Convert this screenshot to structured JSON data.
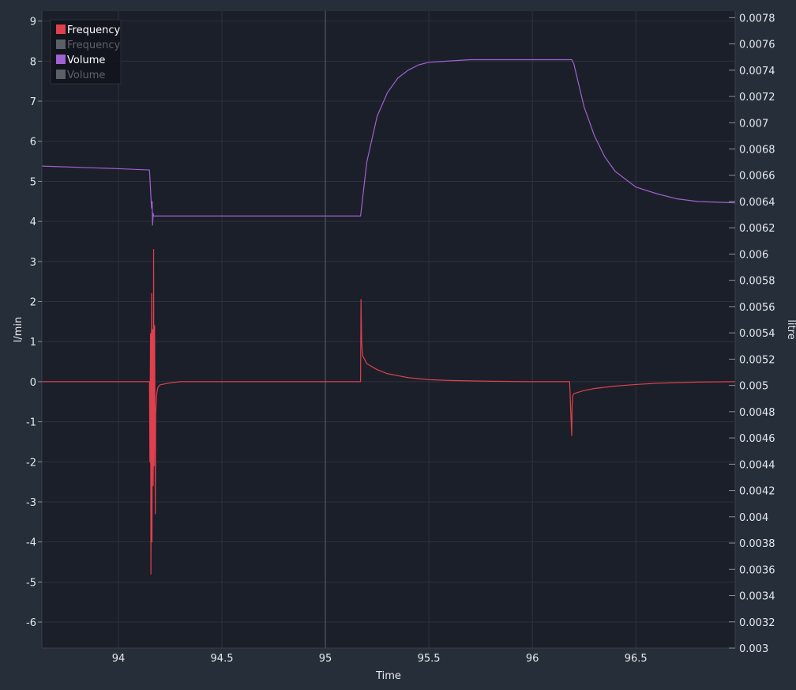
{
  "chart_data": {
    "type": "line",
    "xlabel": "Time",
    "ylabel_left": "l/min",
    "ylabel_right": "litre",
    "xlim": [
      93.63,
      96.98
    ],
    "ylim_left": [
      -6.65,
      9.25
    ],
    "ylim_right": [
      0.003,
      0.00785
    ],
    "x_ticks": [
      94,
      94.5,
      95,
      95.5,
      96,
      96.5
    ],
    "x_tick_labels": [
      "94",
      "94.5",
      "95",
      "95.5",
      "96",
      "96.5"
    ],
    "y_left_ticks": [
      9,
      8,
      7,
      6,
      5,
      4,
      3,
      2,
      1,
      0,
      -1,
      -2,
      -3,
      -4,
      -5,
      -6
    ],
    "y_left_tick_labels": [
      "9",
      "8",
      "7",
      "6",
      "5",
      "4",
      "3",
      "2",
      "1",
      "0",
      "-1",
      "-2",
      "-3",
      "-4",
      "-5",
      "-6"
    ],
    "y_right_ticks": [
      0.0078,
      0.0076,
      0.0074,
      0.0072,
      0.007,
      0.0068,
      0.0066,
      0.0064,
      0.0062,
      0.006,
      0.0058,
      0.0056,
      0.0054,
      0.0052,
      0.005,
      0.0048,
      0.0046,
      0.0044,
      0.0042,
      0.004,
      0.0038,
      0.0036,
      0.0034,
      0.0032,
      0.003
    ],
    "y_right_tick_labels": [
      "0.0078",
      "0.0076",
      "0.0074",
      "0.0072",
      "0.007",
      "0.0068",
      "0.0066",
      "0.0064",
      "0.0062",
      "0.006",
      "0.0058",
      "0.0056",
      "0.0054",
      "0.0052",
      "0.005",
      "0.0048",
      "0.0046",
      "0.0044",
      "0.0042",
      "0.004",
      "0.0038",
      "0.0036",
      "0.0034",
      "0.0032",
      "0.003"
    ],
    "cursor_x": 95.0,
    "grid": true,
    "legend_position": "top-left",
    "legend": [
      {
        "label": "Frequency",
        "color": "#e0404e",
        "active": true
      },
      {
        "label": "Frequency",
        "color": "#5b5f66",
        "active": false
      },
      {
        "label": "Volume",
        "color": "#a061d1",
        "active": true
      },
      {
        "label": "Volume",
        "color": "#5b5f66",
        "active": false
      }
    ],
    "series": [
      {
        "name": "Frequency",
        "axis": "left",
        "color": "#e0404e",
        "x": [
          93.63,
          94.15,
          94.152,
          94.155,
          94.157,
          94.16,
          94.162,
          94.165,
          94.168,
          94.17,
          94.172,
          94.175,
          94.178,
          94.18,
          94.185,
          94.19,
          94.2,
          94.25,
          94.3,
          95.0,
          95.17,
          95.172,
          95.175,
          95.18,
          95.2,
          95.25,
          95.3,
          95.4,
          95.5,
          95.6,
          95.8,
          96.0,
          96.18,
          96.19,
          96.192,
          96.195,
          96.2,
          96.25,
          96.3,
          96.4,
          96.5,
          96.6,
          96.8,
          96.98
        ],
        "y": [
          0,
          0,
          -2.0,
          1.2,
          -4.8,
          2.2,
          -4.0,
          1.3,
          -2.6,
          3.3,
          -2.1,
          1.4,
          -3.3,
          -0.8,
          -0.3,
          -0.15,
          -0.08,
          -0.03,
          0,
          0,
          0,
          2.05,
          1.0,
          0.65,
          0.45,
          0.3,
          0.2,
          0.1,
          0.05,
          0.03,
          0.01,
          0,
          0,
          -1.35,
          -0.6,
          -0.35,
          -0.3,
          -0.22,
          -0.17,
          -0.11,
          -0.07,
          -0.04,
          -0.01,
          0
        ]
      },
      {
        "name": "Volume",
        "axis": "right",
        "color": "#a061d1",
        "x": [
          93.63,
          94.0,
          94.15,
          94.16,
          94.163,
          94.165,
          94.168,
          94.17,
          94.175,
          94.2,
          94.5,
          95.0,
          95.17,
          95.2,
          95.25,
          95.3,
          95.35,
          95.4,
          95.45,
          95.5,
          95.6,
          95.7,
          95.8,
          96.19,
          96.2,
          96.25,
          96.3,
          96.35,
          96.4,
          96.5,
          96.6,
          96.7,
          96.8,
          96.98
        ],
        "y": [
          0.00667,
          0.00665,
          0.00664,
          0.00635,
          0.0064,
          0.00622,
          0.00631,
          0.00629,
          0.00629,
          0.00629,
          0.00629,
          0.00629,
          0.00629,
          0.0067,
          0.00705,
          0.00723,
          0.00734,
          0.0074,
          0.00744,
          0.00746,
          0.00747,
          0.00748,
          0.00748,
          0.00748,
          0.00745,
          0.00712,
          0.0069,
          0.00674,
          0.00663,
          0.00651,
          0.00646,
          0.00642,
          0.0064,
          0.00639
        ]
      }
    ]
  }
}
